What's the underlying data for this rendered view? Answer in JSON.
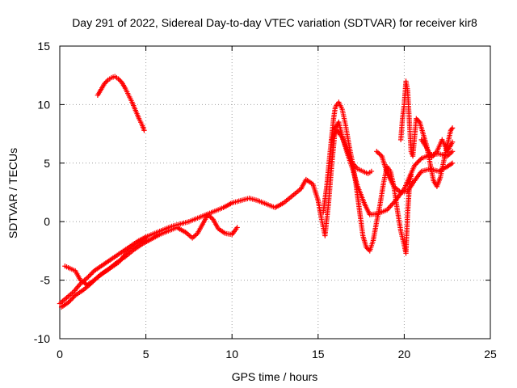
{
  "chart_data": {
    "type": "scatter",
    "title": "Day 291 of 2022, Sidereal Day-to-day VTEC variation (SDTVAR) for receiver kir8",
    "xlabel": "GPS time / hours",
    "ylabel": "SDTVAR / TECUs",
    "xlim": [
      0,
      25
    ],
    "ylim": [
      -10,
      15
    ],
    "xticks": [
      0,
      5,
      10,
      15,
      20,
      25
    ],
    "xtick_labels": [
      "0",
      "5",
      "10",
      "15",
      "20",
      "25"
    ],
    "yticks": [
      -10,
      -5,
      0,
      5,
      10,
      15
    ],
    "ytick_labels": [
      "-10",
      "-5",
      "0",
      "5",
      "10",
      "15"
    ],
    "grid": true,
    "marker": "plus",
    "color": "#ff0000",
    "series": [
      {
        "name": "track-1",
        "points": [
          [
            0.0,
            -7.0
          ],
          [
            0.4,
            -6.5
          ],
          [
            0.8,
            -6.0
          ],
          [
            1.2,
            -5.3
          ],
          [
            1.6,
            -4.8
          ],
          [
            2.0,
            -4.2
          ],
          [
            2.5,
            -3.7
          ],
          [
            3.0,
            -3.2
          ],
          [
            3.5,
            -2.7
          ],
          [
            4.0,
            -2.2
          ],
          [
            4.5,
            -1.7
          ],
          [
            5.0,
            -1.3
          ],
          [
            5.5,
            -1.0
          ],
          [
            6.0,
            -0.7
          ],
          [
            6.5,
            -0.4
          ],
          [
            7.0,
            -0.2
          ],
          [
            7.5,
            0.0
          ],
          [
            8.0,
            0.3
          ],
          [
            8.5,
            0.6
          ],
          [
            9.0,
            0.9
          ],
          [
            9.5,
            1.2
          ],
          [
            10.0,
            1.6
          ],
          [
            10.5,
            1.8
          ],
          [
            11.0,
            2.0
          ],
          [
            11.5,
            1.8
          ],
          [
            12.0,
            1.5
          ],
          [
            12.5,
            1.2
          ],
          [
            13.0,
            1.6
          ],
          [
            13.5,
            2.2
          ],
          [
            14.0,
            2.8
          ],
          [
            14.3,
            3.6
          ],
          [
            14.7,
            3.2
          ],
          [
            15.0,
            1.8
          ],
          [
            15.2,
            0.2
          ],
          [
            15.4,
            -1.2
          ],
          [
            15.6,
            1.5
          ],
          [
            15.8,
            5.0
          ],
          [
            16.0,
            8.0
          ],
          [
            16.2,
            8.5
          ],
          [
            16.4,
            7.3
          ],
          [
            16.7,
            5.8
          ],
          [
            17.0,
            4.5
          ],
          [
            17.3,
            3.0
          ],
          [
            17.7,
            1.5
          ],
          [
            18.0,
            0.6
          ],
          [
            18.5,
            0.7
          ],
          [
            19.0,
            1.0
          ],
          [
            19.5,
            1.8
          ],
          [
            20.0,
            2.8
          ],
          [
            20.3,
            3.8
          ],
          [
            20.6,
            4.8
          ],
          [
            21.0,
            5.4
          ],
          [
            21.5,
            5.7
          ],
          [
            22.0,
            5.8
          ],
          [
            22.5,
            5.6
          ],
          [
            22.8,
            6.0
          ]
        ]
      },
      {
        "name": "track-2",
        "points": [
          [
            0.1,
            -7.3
          ],
          [
            0.5,
            -6.9
          ],
          [
            0.9,
            -6.3
          ],
          [
            1.4,
            -5.8
          ],
          [
            1.8,
            -5.3
          ],
          [
            2.3,
            -4.6
          ],
          [
            2.8,
            -4.1
          ],
          [
            3.3,
            -3.5
          ],
          [
            3.8,
            -3.0
          ],
          [
            4.3,
            -2.4
          ],
          [
            4.8,
            -1.9
          ],
          [
            5.3,
            -1.5
          ],
          [
            5.8,
            -1.1
          ],
          [
            6.3,
            -0.8
          ],
          [
            6.8,
            -0.5
          ],
          [
            7.3,
            -0.9
          ],
          [
            7.7,
            -1.4
          ],
          [
            8.0,
            -1.0
          ],
          [
            8.3,
            -0.2
          ],
          [
            8.6,
            0.6
          ],
          [
            8.9,
            0.2
          ],
          [
            9.2,
            -0.6
          ],
          [
            9.6,
            -1.0
          ],
          [
            10.0,
            -1.1
          ],
          [
            10.3,
            -0.5
          ]
        ]
      },
      {
        "name": "track-3",
        "points": [
          [
            0.3,
            -3.8
          ],
          [
            0.6,
            -4.0
          ],
          [
            0.9,
            -4.2
          ],
          [
            1.2,
            -5.0
          ],
          [
            1.6,
            -5.4
          ],
          [
            2.0,
            -5.0
          ],
          [
            2.5,
            -4.4
          ],
          [
            3.0,
            -3.9
          ],
          [
            3.4,
            -3.5
          ],
          [
            3.8,
            -2.8
          ],
          [
            4.2,
            -2.3
          ],
          [
            4.6,
            -1.8
          ],
          [
            5.0,
            -1.4
          ]
        ]
      },
      {
        "name": "track-4",
        "points": [
          [
            2.2,
            10.8
          ],
          [
            2.4,
            11.3
          ],
          [
            2.6,
            11.8
          ],
          [
            2.8,
            12.1
          ],
          [
            3.0,
            12.3
          ],
          [
            3.2,
            12.4
          ],
          [
            3.4,
            12.2
          ],
          [
            3.6,
            11.9
          ],
          [
            3.8,
            11.4
          ],
          [
            4.0,
            10.8
          ],
          [
            4.2,
            10.2
          ],
          [
            4.4,
            9.5
          ],
          [
            4.6,
            8.8
          ],
          [
            4.8,
            8.2
          ],
          [
            4.9,
            7.8
          ]
        ]
      },
      {
        "name": "track-5",
        "points": [
          [
            15.3,
            0.8
          ],
          [
            15.5,
            3.0
          ],
          [
            15.7,
            6.0
          ],
          [
            15.9,
            8.8
          ],
          [
            16.0,
            9.8
          ],
          [
            16.2,
            10.2
          ],
          [
            16.4,
            9.6
          ],
          [
            16.6,
            8.2
          ],
          [
            16.8,
            6.5
          ],
          [
            17.0,
            5.0
          ],
          [
            17.2,
            3.2
          ],
          [
            17.4,
            1.0
          ],
          [
            17.6,
            -1.2
          ],
          [
            17.8,
            -2.2
          ],
          [
            18.0,
            -2.5
          ],
          [
            18.2,
            -1.6
          ],
          [
            18.4,
            0.0
          ],
          [
            18.6,
            1.5
          ],
          [
            18.8,
            3.3
          ],
          [
            19.0,
            4.7
          ],
          [
            19.2,
            4.3
          ],
          [
            19.4,
            3.0
          ],
          [
            19.6,
            1.0
          ],
          [
            19.8,
            -0.8
          ],
          [
            20.0,
            -2.0
          ],
          [
            20.1,
            -2.7
          ],
          [
            20.2,
            0.8
          ],
          [
            20.3,
            3.0
          ],
          [
            20.4,
            4.0
          ]
        ]
      },
      {
        "name": "track-6",
        "points": [
          [
            15.8,
            7.0
          ],
          [
            16.1,
            7.8
          ],
          [
            16.4,
            7.2
          ],
          [
            16.7,
            6.0
          ],
          [
            17.0,
            5.0
          ],
          [
            17.3,
            4.5
          ],
          [
            17.6,
            4.3
          ],
          [
            17.9,
            4.1
          ],
          [
            18.1,
            4.3
          ]
        ]
      },
      {
        "name": "track-7",
        "points": [
          [
            18.4,
            6.0
          ],
          [
            18.7,
            5.6
          ],
          [
            19.0,
            4.2
          ],
          [
            19.4,
            3.0
          ],
          [
            19.8,
            2.5
          ],
          [
            20.2,
            2.6
          ],
          [
            20.6,
            3.5
          ],
          [
            21.0,
            4.3
          ],
          [
            21.5,
            4.5
          ],
          [
            22.0,
            4.3
          ],
          [
            22.5,
            4.7
          ],
          [
            22.8,
            5.0
          ]
        ]
      },
      {
        "name": "track-8",
        "points": [
          [
            19.8,
            7.0
          ],
          [
            19.9,
            8.8
          ],
          [
            20.0,
            10.0
          ],
          [
            20.1,
            12.0
          ],
          [
            20.2,
            11.2
          ],
          [
            20.3,
            8.5
          ],
          [
            20.4,
            6.0
          ],
          [
            20.5,
            5.6
          ],
          [
            20.7,
            8.8
          ],
          [
            20.9,
            8.5
          ],
          [
            21.1,
            7.5
          ],
          [
            21.3,
            6.5
          ],
          [
            21.5,
            5.0
          ],
          [
            21.7,
            3.5
          ],
          [
            21.9,
            3.0
          ],
          [
            22.1,
            3.8
          ],
          [
            22.3,
            5.2
          ],
          [
            22.5,
            6.5
          ],
          [
            22.7,
            7.8
          ],
          [
            22.8,
            8.0
          ]
        ]
      },
      {
        "name": "track-9",
        "points": [
          [
            21.0,
            7.0
          ],
          [
            21.3,
            6.3
          ],
          [
            21.6,
            5.5
          ],
          [
            21.9,
            6.0
          ],
          [
            22.2,
            7.0
          ],
          [
            22.5,
            6.0
          ],
          [
            22.8,
            6.8
          ]
        ]
      }
    ]
  }
}
